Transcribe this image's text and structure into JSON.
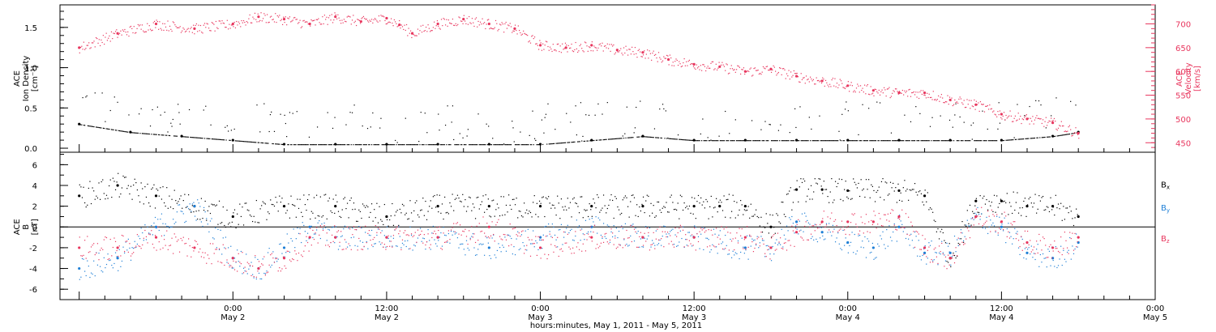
{
  "chart_data": [
    {
      "panel": "density-velocity",
      "type": "scatter",
      "ylabel": [
        "ACE",
        "Ion Density",
        "[cm⁻³]"
      ],
      "ylim": [
        -0.05,
        1.78
      ],
      "yticks": [
        0.0,
        0.5,
        1.0,
        1.5
      ],
      "ytick_labels": [
        "0.0",
        "0.5",
        "1.0",
        "1.5"
      ],
      "y2label": [
        "ACE",
        "Velocity",
        "[km/s]"
      ],
      "y2lim": [
        430,
        740
      ],
      "y2ticks": [
        450,
        500,
        550,
        600,
        650,
        700
      ],
      "y2tick_labels": [
        "450",
        "500",
        "550",
        "600",
        "650",
        "700"
      ],
      "series": [
        {
          "color": "#000000",
          "axis": "left",
          "hours": [
            -12,
            -8,
            -4,
            0,
            4,
            8,
            12,
            16,
            20,
            24,
            28,
            32,
            36,
            40,
            44,
            48,
            52,
            56,
            60,
            64,
            66
          ],
          "values": [
            0.3,
            0.2,
            0.15,
            0.1,
            0.05,
            0.05,
            0.05,
            0.05,
            0.05,
            0.05,
            0.1,
            0.15,
            0.1,
            0.1,
            0.1,
            0.1,
            0.1,
            0.1,
            0.1,
            0.15,
            0.2
          ]
        },
        {
          "color": "#e8365e",
          "axis": "right",
          "hours": [
            -12,
            -9,
            -6,
            -3,
            0,
            2,
            4,
            6,
            8,
            10,
            12,
            13,
            14,
            16,
            18,
            20,
            22,
            24,
            26,
            28,
            30,
            32,
            34,
            36,
            38,
            40,
            42,
            44,
            46,
            48,
            50,
            52,
            54,
            56,
            58,
            60,
            62,
            64,
            66
          ],
          "values": [
            650,
            680,
            700,
            690,
            700,
            715,
            710,
            700,
            715,
            705,
            712,
            698,
            680,
            700,
            710,
            700,
            690,
            655,
            650,
            655,
            645,
            640,
            625,
            615,
            610,
            600,
            605,
            590,
            580,
            570,
            560,
            555,
            555,
            540,
            530,
            510,
            500,
            492,
            470
          ]
        }
      ]
    },
    {
      "panel": "magnetic-field",
      "type": "scatter",
      "ylabel": [
        "ACE",
        "B",
        "[nT]"
      ],
      "ylim": [
        -7,
        7.2
      ],
      "yticks": [
        -6,
        -4,
        -2,
        0,
        2,
        4,
        6
      ],
      "ytick_labels": [
        "-6",
        "-4",
        "-2",
        "0",
        "2",
        "4",
        "6"
      ],
      "series": [
        {
          "name": "Bx",
          "color": "#000000",
          "hours": [
            -12,
            -9,
            -6,
            -3,
            0,
            4,
            8,
            12,
            16,
            20,
            24,
            28,
            32,
            36,
            38,
            40,
            42,
            44,
            46,
            48,
            52,
            54,
            56,
            58,
            60,
            62,
            64,
            66
          ],
          "values": [
            3,
            4,
            3,
            2,
            1,
            2,
            2,
            1,
            2,
            2,
            2,
            2,
            2,
            2,
            2,
            2,
            0,
            3.6,
            3.6,
            3.5,
            3.5,
            3,
            -3,
            2.5,
            2.5,
            2,
            2,
            1
          ]
        },
        {
          "name": "By",
          "color": "#1e7fd6",
          "hours": [
            -12,
            -9,
            -6,
            -3,
            0,
            2,
            4,
            6,
            8,
            12,
            16,
            20,
            24,
            28,
            32,
            36,
            40,
            42,
            44,
            46,
            48,
            50,
            52,
            54,
            56,
            58,
            60,
            62,
            64,
            66
          ],
          "values": [
            -4,
            -3,
            0,
            2,
            -3,
            -4,
            -2,
            0,
            -1,
            -1,
            -1,
            -2,
            -1,
            0,
            -1,
            -1,
            -2,
            -2,
            0.5,
            -0.5,
            -1.5,
            -2,
            0,
            -2.5,
            -2.5,
            1,
            0,
            -2.5,
            -3,
            -1.5
          ]
        },
        {
          "name": "Bz",
          "color": "#e8365e",
          "hours": [
            -12,
            -9,
            -6,
            -3,
            0,
            2,
            4,
            6,
            8,
            12,
            16,
            20,
            24,
            28,
            32,
            36,
            40,
            42,
            44,
            46,
            48,
            50,
            52,
            54,
            56,
            58,
            60,
            62,
            64,
            66
          ],
          "values": [
            -2,
            -2,
            -1,
            -2,
            -3,
            -4,
            -3,
            -1,
            -1,
            -1,
            -1,
            0,
            -2,
            -1,
            -1,
            -1,
            -1,
            -2,
            -0.5,
            0.5,
            0.5,
            0.5,
            1,
            -2,
            -3,
            1,
            0.5,
            -1.5,
            -2,
            -1
          ]
        }
      ],
      "legend": [
        "Bx",
        "By",
        "Bz"
      ]
    }
  ],
  "xaxis": {
    "label": "hours:minutes,  May  1, 2011 - May  5, 2011",
    "range_hours": [
      -13.5,
      72
    ],
    "ticks": [
      {
        "hour": 0,
        "time": "0:00",
        "date": "May 2"
      },
      {
        "hour": 12,
        "time": "12:00",
        "date": "May 2"
      },
      {
        "hour": 24,
        "time": "0:00",
        "date": "May 3"
      },
      {
        "hour": 36,
        "time": "12:00",
        "date": "May 3"
      },
      {
        "hour": 48,
        "time": "0:00",
        "date": "May 4"
      },
      {
        "hour": 60,
        "time": "12:00",
        "date": "May 4"
      },
      {
        "hour": 72,
        "time": "0:00",
        "date": "May 5"
      }
    ]
  }
}
